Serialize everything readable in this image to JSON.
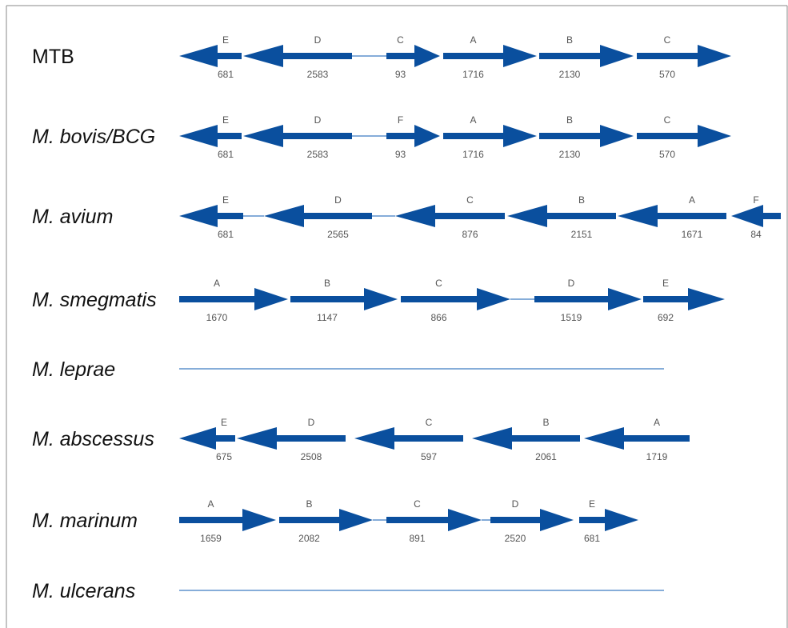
{
  "diagram": {
    "colors": {
      "arrow": "#0a4f9e",
      "connector": "#3f7cc2",
      "border": "#888888",
      "text": "#555555"
    },
    "rows": [
      {
        "species": "MTB",
        "italic": false,
        "genes": [
          {
            "letter": "E",
            "length": "681",
            "direction": "left"
          },
          {
            "letter": "D",
            "length": "2583",
            "direction": "left"
          },
          {
            "letter": "C",
            "length": "93",
            "direction": "right"
          },
          {
            "letter": "A",
            "length": "1716",
            "direction": "right"
          },
          {
            "letter": "B",
            "length": "2130",
            "direction": "right"
          },
          {
            "letter": "C",
            "length": "570",
            "direction": "right"
          }
        ]
      },
      {
        "species": "M. bovis/BCG",
        "italic": true,
        "genes": [
          {
            "letter": "E",
            "length": "681",
            "direction": "left"
          },
          {
            "letter": "D",
            "length": "2583",
            "direction": "left"
          },
          {
            "letter": "F",
            "length": "93",
            "direction": "right"
          },
          {
            "letter": "A",
            "length": "1716",
            "direction": "right"
          },
          {
            "letter": "B",
            "length": "2130",
            "direction": "right"
          },
          {
            "letter": "C",
            "length": "570",
            "direction": "right"
          }
        ]
      },
      {
        "species": "M. avium",
        "italic": true,
        "genes": [
          {
            "letter": "E",
            "length": "681",
            "direction": "left"
          },
          {
            "letter": "D",
            "length": "2565",
            "direction": "left"
          },
          {
            "letter": "C",
            "length": "876",
            "direction": "left"
          },
          {
            "letter": "B",
            "length": "2151",
            "direction": "left"
          },
          {
            "letter": "A",
            "length": "1671",
            "direction": "left"
          },
          {
            "letter": "F",
            "length": "84",
            "direction": "left"
          }
        ]
      },
      {
        "species": "M. smegmatis",
        "italic": true,
        "genes": [
          {
            "letter": "A",
            "length": "1670",
            "direction": "right"
          },
          {
            "letter": "B",
            "length": "1147",
            "direction": "right"
          },
          {
            "letter": "C",
            "length": "866",
            "direction": "right"
          },
          {
            "letter": "D",
            "length": "1519",
            "direction": "right"
          },
          {
            "letter": "E",
            "length": "692",
            "direction": "right"
          }
        ]
      },
      {
        "species": "M. leprae",
        "italic": true,
        "genes": []
      },
      {
        "species": "M. abscessus",
        "italic": true,
        "genes": [
          {
            "letter": "E",
            "length": "675",
            "direction": "left"
          },
          {
            "letter": "D",
            "length": "2508",
            "direction": "left"
          },
          {
            "letter": "C",
            "length": "597",
            "direction": "left"
          },
          {
            "letter": "B",
            "length": "2061",
            "direction": "left"
          },
          {
            "letter": "A",
            "length": "1719",
            "direction": "left"
          }
        ]
      },
      {
        "species": "M. marinum",
        "italic": true,
        "genes": [
          {
            "letter": "A",
            "length": "1659",
            "direction": "right"
          },
          {
            "letter": "B",
            "length": "2082",
            "direction": "right"
          },
          {
            "letter": "C",
            "length": "891",
            "direction": "right"
          },
          {
            "letter": "D",
            "length": "2520",
            "direction": "right"
          },
          {
            "letter": "E",
            "length": "681",
            "direction": "right"
          }
        ]
      },
      {
        "species": "M. ulcerans",
        "italic": true,
        "genes": []
      }
    ]
  }
}
